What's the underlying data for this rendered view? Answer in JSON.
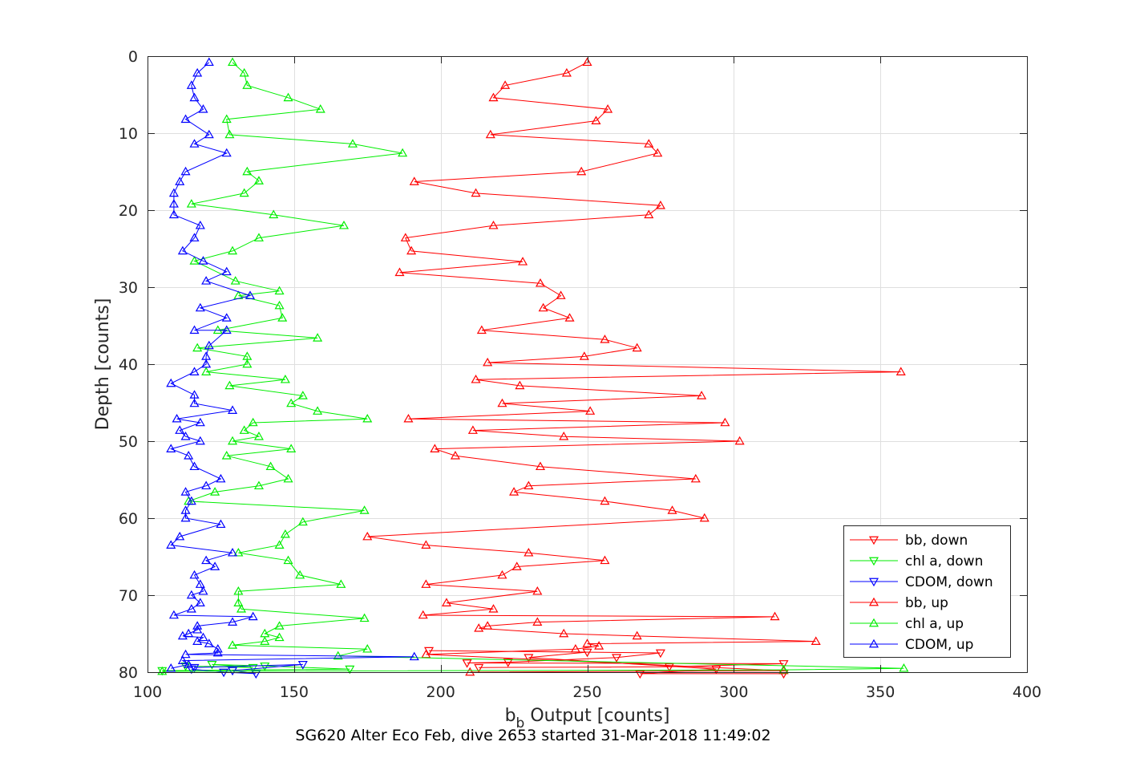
{
  "chart_data": {
    "type": "line",
    "xlabel_main": "b",
    "xlabel_sub": "b",
    "xlabel_rest": " Output [counts]",
    "ylabel": "Depth [counts]",
    "caption": "SG620 Alter Eco Feb, dive 2653 started 31-Mar-2018 11:49:02",
    "xlim": [
      100,
      400
    ],
    "ylim": [
      0,
      80
    ],
    "y_reversed": true,
    "grid": true,
    "legend_position": "bottom-right",
    "x_ticks": [
      "100",
      "150",
      "200",
      "250",
      "300",
      "350",
      "400"
    ],
    "y_ticks": [
      "0",
      "10",
      "20",
      "30",
      "40",
      "50",
      "60",
      "70",
      "80"
    ],
    "series": [
      {
        "name": "bb, down",
        "color": "#ff0000",
        "marker": "triangle-down",
        "points": [
          [
            213,
            79.4
          ],
          [
            278,
            79.3
          ],
          [
            317,
            78.9
          ],
          [
            209,
            78.8
          ],
          [
            223,
            78.7
          ],
          [
            260,
            78.1
          ],
          [
            275,
            77.5
          ],
          [
            196,
            77.2
          ],
          [
            250,
            77.4
          ],
          [
            230,
            78.1
          ],
          [
            294,
            79.6
          ],
          [
            268,
            80.2
          ],
          [
            317,
            80.2
          ]
        ]
      },
      {
        "name": "chl a, down",
        "color": "#00ee00",
        "marker": "triangle-down",
        "points": [
          [
            105,
            79.8
          ],
          [
            169,
            79.6
          ],
          [
            140,
            79.2
          ],
          [
            122,
            79.0
          ],
          [
            136,
            79.4
          ],
          [
            113,
            79.2
          ]
        ]
      },
      {
        "name": "CDOM, down",
        "color": "#0000ff",
        "marker": "triangle-down",
        "points": [
          [
            116,
            79.4
          ],
          [
            153,
            79.0
          ],
          [
            129,
            79.8
          ],
          [
            137,
            80.2
          ],
          [
            126,
            80.0
          ],
          [
            115,
            79.6
          ]
        ]
      },
      {
        "name": "bb, up",
        "color": "#ff0000",
        "marker": "triangle-up",
        "points": [
          [
            250,
            0.8
          ],
          [
            243,
            2.2
          ],
          [
            222,
            3.8
          ],
          [
            218,
            5.4
          ],
          [
            257,
            6.9
          ],
          [
            253,
            8.4
          ],
          [
            217,
            10.2
          ],
          [
            271,
            11.4
          ],
          [
            274,
            12.6
          ],
          [
            248,
            15.0
          ],
          [
            191,
            16.3
          ],
          [
            212,
            17.8
          ],
          [
            275,
            19.4
          ],
          [
            271,
            20.6
          ],
          [
            218,
            22.0
          ],
          [
            188,
            23.6
          ],
          [
            190,
            25.3
          ],
          [
            228,
            26.7
          ],
          [
            186,
            28.1
          ],
          [
            234,
            29.5
          ],
          [
            241,
            31.1
          ],
          [
            235,
            32.7
          ],
          [
            244,
            34.0
          ],
          [
            214,
            35.6
          ],
          [
            256,
            36.8
          ],
          [
            267,
            37.9
          ],
          [
            249,
            39.0
          ],
          [
            216,
            39.8
          ],
          [
            357,
            41.0
          ],
          [
            212,
            42.0
          ],
          [
            227,
            42.8
          ],
          [
            289,
            44.1
          ],
          [
            221,
            45.1
          ],
          [
            251,
            46.1
          ],
          [
            189,
            47.1
          ],
          [
            297,
            47.6
          ],
          [
            211,
            48.6
          ],
          [
            242,
            49.4
          ],
          [
            302,
            50.0
          ],
          [
            198,
            51.0
          ],
          [
            205,
            51.9
          ],
          [
            234,
            53.3
          ],
          [
            287,
            54.9
          ],
          [
            230,
            55.8
          ],
          [
            225,
            56.6
          ],
          [
            256,
            57.8
          ],
          [
            279,
            59.0
          ],
          [
            290,
            60.0
          ],
          [
            175,
            62.4
          ],
          [
            195,
            63.5
          ],
          [
            230,
            64.5
          ],
          [
            256,
            65.5
          ],
          [
            226,
            66.3
          ],
          [
            221,
            67.4
          ],
          [
            195,
            68.6
          ],
          [
            233,
            69.5
          ],
          [
            202,
            71.0
          ],
          [
            218,
            71.8
          ],
          [
            194,
            72.6
          ],
          [
            314,
            72.8
          ],
          [
            233,
            73.5
          ],
          [
            216,
            74.0
          ],
          [
            213,
            74.3
          ],
          [
            242,
            75.0
          ],
          [
            267,
            75.3
          ],
          [
            328,
            76.0
          ],
          [
            250,
            76.3
          ],
          [
            254,
            76.6
          ],
          [
            246,
            77.0
          ],
          [
            195,
            77.7
          ],
          [
            317,
            79.8
          ],
          [
            210,
            80.0
          ]
        ]
      },
      {
        "name": "chl a, up",
        "color": "#00ee00",
        "marker": "triangle-up",
        "points": [
          [
            129,
            0.8
          ],
          [
            133,
            2.2
          ],
          [
            134,
            3.8
          ],
          [
            148,
            5.4
          ],
          [
            159,
            6.9
          ],
          [
            127,
            8.2
          ],
          [
            128,
            10.2
          ],
          [
            170,
            11.4
          ],
          [
            187,
            12.6
          ],
          [
            134,
            15.0
          ],
          [
            138,
            16.2
          ],
          [
            133,
            17.8
          ],
          [
            115,
            19.2
          ],
          [
            143,
            20.6
          ],
          [
            167,
            22.0
          ],
          [
            138,
            23.6
          ],
          [
            129,
            25.3
          ],
          [
            116,
            26.6
          ],
          [
            130,
            29.2
          ],
          [
            145,
            30.5
          ],
          [
            131,
            31.1
          ],
          [
            145,
            32.4
          ],
          [
            146,
            34.0
          ],
          [
            124,
            35.6
          ],
          [
            158,
            36.6
          ],
          [
            117,
            37.9
          ],
          [
            134,
            39.0
          ],
          [
            134,
            40.0
          ],
          [
            120,
            41.0
          ],
          [
            147,
            42.0
          ],
          [
            128,
            42.8
          ],
          [
            153,
            44.1
          ],
          [
            149,
            45.1
          ],
          [
            158,
            46.1
          ],
          [
            175,
            47.1
          ],
          [
            136,
            47.6
          ],
          [
            133,
            48.6
          ],
          [
            138,
            49.4
          ],
          [
            129,
            50.0
          ],
          [
            149,
            51.0
          ],
          [
            127,
            51.9
          ],
          [
            142,
            53.3
          ],
          [
            148,
            54.9
          ],
          [
            138,
            55.8
          ],
          [
            123,
            56.6
          ],
          [
            114,
            57.8
          ],
          [
            174,
            59.0
          ],
          [
            153,
            60.5
          ],
          [
            147,
            62.1
          ],
          [
            145,
            63.5
          ],
          [
            131,
            64.5
          ],
          [
            148,
            65.5
          ],
          [
            152,
            67.4
          ],
          [
            166,
            68.6
          ],
          [
            131,
            69.5
          ],
          [
            131,
            71.0
          ],
          [
            132,
            71.8
          ],
          [
            174,
            73.0
          ],
          [
            145,
            74.0
          ],
          [
            140,
            75.0
          ],
          [
            145,
            75.5
          ],
          [
            140,
            76.0
          ],
          [
            129,
            76.5
          ],
          [
            175,
            77.0
          ],
          [
            165,
            77.9
          ],
          [
            358,
            79.5
          ],
          [
            317,
            79.7
          ],
          [
            105,
            79.9
          ]
        ]
      },
      {
        "name": "CDOM, up",
        "color": "#0000ff",
        "marker": "triangle-up",
        "points": [
          [
            121,
            0.8
          ],
          [
            117,
            2.2
          ],
          [
            115,
            3.8
          ],
          [
            116,
            5.4
          ],
          [
            119,
            6.9
          ],
          [
            113,
            8.2
          ],
          [
            121,
            10.2
          ],
          [
            116,
            11.4
          ],
          [
            127,
            12.6
          ],
          [
            113,
            15.0
          ],
          [
            111,
            16.3
          ],
          [
            109,
            17.8
          ],
          [
            109,
            19.2
          ],
          [
            109,
            20.6
          ],
          [
            118,
            22.0
          ],
          [
            116,
            23.6
          ],
          [
            112,
            25.3
          ],
          [
            119,
            26.6
          ],
          [
            127,
            28.0
          ],
          [
            120,
            29.2
          ],
          [
            135,
            31.1
          ],
          [
            118,
            32.7
          ],
          [
            127,
            34.0
          ],
          [
            116,
            35.6
          ],
          [
            127,
            35.6
          ],
          [
            121,
            37.6
          ],
          [
            120,
            39.0
          ],
          [
            120,
            40.0
          ],
          [
            116,
            41.0
          ],
          [
            108,
            42.5
          ],
          [
            116,
            44.0
          ],
          [
            116,
            45.1
          ],
          [
            129,
            46.0
          ],
          [
            110,
            47.1
          ],
          [
            118,
            47.6
          ],
          [
            111,
            48.6
          ],
          [
            113,
            49.4
          ],
          [
            118,
            50.0
          ],
          [
            108,
            51.0
          ],
          [
            114,
            51.9
          ],
          [
            116,
            53.3
          ],
          [
            125,
            54.9
          ],
          [
            120,
            55.8
          ],
          [
            113,
            56.6
          ],
          [
            115,
            57.8
          ],
          [
            113,
            59.0
          ],
          [
            113,
            60.0
          ],
          [
            125,
            60.8
          ],
          [
            111,
            62.4
          ],
          [
            108,
            63.5
          ],
          [
            129,
            64.5
          ],
          [
            120,
            65.5
          ],
          [
            123,
            66.3
          ],
          [
            116,
            67.4
          ],
          [
            118,
            68.6
          ],
          [
            119,
            69.5
          ],
          [
            115,
            70.0
          ],
          [
            118,
            71.0
          ],
          [
            115,
            71.8
          ],
          [
            109,
            72.6
          ],
          [
            136,
            72.8
          ],
          [
            129,
            73.5
          ],
          [
            117,
            74.0
          ],
          [
            117,
            74.5
          ],
          [
            114,
            75.0
          ],
          [
            112,
            75.3
          ],
          [
            119,
            75.5
          ],
          [
            117,
            76.0
          ],
          [
            121,
            76.3
          ],
          [
            124,
            77.0
          ],
          [
            124,
            77.5
          ],
          [
            113,
            77.7
          ],
          [
            191,
            78.0
          ],
          [
            112,
            78.5
          ],
          [
            114,
            79.0
          ],
          [
            108,
            79.5
          ]
        ]
      }
    ]
  }
}
